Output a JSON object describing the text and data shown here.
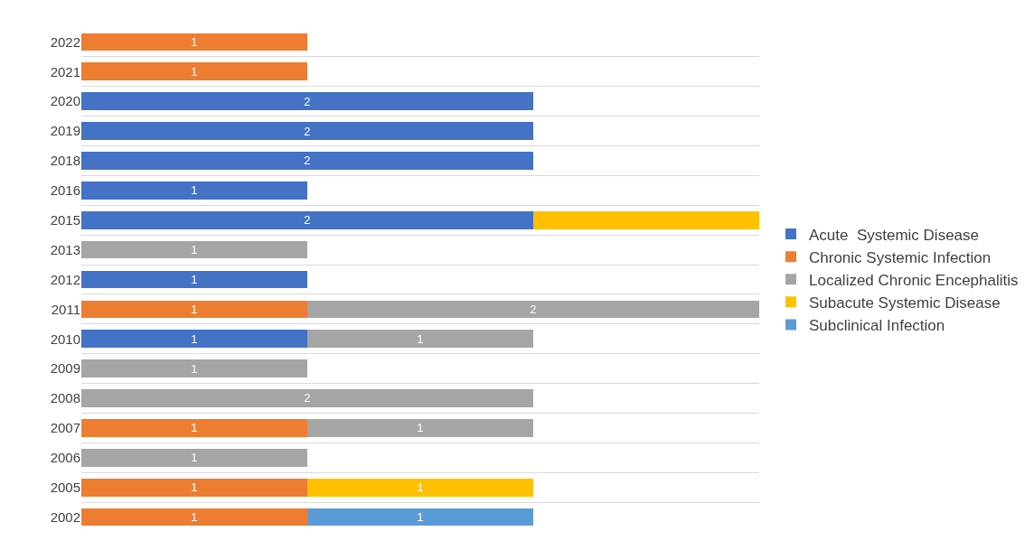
{
  "chart_data": {
    "type": "bar",
    "orientation": "horizontal",
    "stacked": true,
    "grid": "y",
    "legend": "right",
    "categories": [
      "2022",
      "2021",
      "2020",
      "2019",
      "2018",
      "2016",
      "2015",
      "2013",
      "2012",
      "2011",
      "2010",
      "2009",
      "2008",
      "2007",
      "2006",
      "2005",
      "2002"
    ],
    "series": [
      {
        "name": "Acute  Systemic Disease",
        "color": "#4472c4",
        "values": [
          null,
          null,
          2,
          2,
          2,
          1,
          2,
          null,
          1,
          null,
          1,
          null,
          null,
          null,
          null,
          null,
          null
        ],
        "value_labels": [
          null,
          null,
          "2",
          "2",
          "2",
          "1",
          "2",
          null,
          "1",
          null,
          "1",
          null,
          null,
          null,
          null,
          null,
          null
        ]
      },
      {
        "name": "Chronic Systemic Infection",
        "color": "#ed7d31",
        "values": [
          1,
          1,
          null,
          null,
          null,
          null,
          null,
          null,
          null,
          1,
          null,
          null,
          null,
          1,
          null,
          1,
          1
        ],
        "value_labels": [
          "1",
          "1",
          null,
          null,
          null,
          null,
          null,
          null,
          null,
          "1",
          null,
          null,
          null,
          "1",
          null,
          "1",
          "1"
        ]
      },
      {
        "name": "Localized Chronic Encephalitis",
        "color": "#a5a5a5",
        "values": [
          null,
          null,
          null,
          null,
          null,
          null,
          null,
          1,
          null,
          2,
          1,
          1,
          2,
          1,
          1,
          null,
          null
        ],
        "value_labels": [
          null,
          null,
          null,
          null,
          null,
          null,
          null,
          "1",
          null,
          "2",
          "1",
          "1",
          "2",
          "1",
          "1",
          null,
          null
        ]
      },
      {
        "name": "Subacute Systemic Disease",
        "color": "#ffc000",
        "values": [
          null,
          null,
          null,
          null,
          null,
          null,
          1,
          null,
          null,
          null,
          null,
          null,
          null,
          null,
          null,
          1,
          null
        ],
        "value_labels": [
          null,
          null,
          null,
          null,
          null,
          null,
          null,
          null,
          null,
          null,
          null,
          null,
          null,
          null,
          null,
          "1",
          null
        ]
      },
      {
        "name": "Subclinical Infection",
        "color": "#5b9bd5",
        "values": [
          null,
          null,
          null,
          null,
          null,
          null,
          null,
          null,
          null,
          null,
          null,
          null,
          null,
          null,
          null,
          null,
          1
        ],
        "value_labels": [
          null,
          null,
          null,
          null,
          null,
          null,
          null,
          null,
          null,
          null,
          null,
          null,
          null,
          null,
          null,
          null,
          "1"
        ]
      }
    ]
  }
}
